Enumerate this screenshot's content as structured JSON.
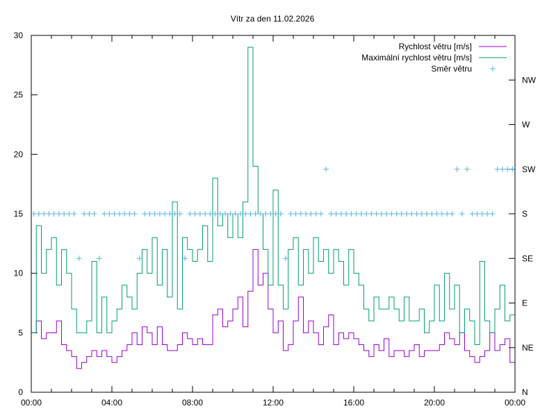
{
  "chart_data": {
    "type": "line",
    "title": "Vítr za den 11.02.2026",
    "xlabel": "",
    "ylabel": "",
    "ylim": [
      0,
      30
    ],
    "y2lim": [
      0,
      360
    ],
    "yticks": [
      0,
      5,
      10,
      15,
      20,
      25,
      30
    ],
    "xticks": [
      "00:00",
      "04:00",
      "08:00",
      "12:00",
      "16:00",
      "20:00",
      "00:00"
    ],
    "y2ticks": [
      {
        "label": "N",
        "value": 0
      },
      {
        "label": "NE",
        "value": 45
      },
      {
        "label": "E",
        "value": 90
      },
      {
        "label": "SE",
        "value": 135
      },
      {
        "label": "S",
        "value": 180
      },
      {
        "label": "SW",
        "value": 225
      },
      {
        "label": "W",
        "value": 270
      },
      {
        "label": "NW",
        "value": 315
      }
    ],
    "legend_position": "top-right",
    "x_hours_step": 0.25,
    "series": [
      {
        "name": "Rychlost větru [m/s]",
        "color": "#9400d3",
        "style": "steps",
        "values": [
          5,
          6,
          4.5,
          5,
          5,
          6,
          4,
          3.5,
          3,
          2,
          2.5,
          3,
          3.5,
          3,
          3.5,
          3,
          2.5,
          3,
          3.5,
          4,
          5,
          4,
          5.5,
          5,
          4,
          5.5,
          4,
          3.5,
          3.5,
          4,
          5,
          4.5,
          4,
          4.5,
          4,
          4,
          6.5,
          7,
          5.5,
          6,
          7,
          8,
          5.5,
          8.5,
          12,
          9,
          10,
          7,
          5,
          6,
          3.5,
          4,
          6,
          8,
          5,
          6,
          5,
          4,
          5.5,
          6.5,
          4,
          5,
          4.5,
          5,
          4.5,
          4,
          3.5,
          3,
          4,
          3.5,
          4.5,
          3,
          3.5,
          3.5,
          3,
          3.5,
          4,
          3,
          3.5,
          3.5,
          3.5,
          4,
          5,
          4.5,
          4,
          5,
          3.5,
          3,
          2.5,
          3,
          3.5,
          5,
          3.5,
          4,
          4.5,
          2.5
        ]
      },
      {
        "name": "Maximální rychlost větru [m/s]",
        "color": "#009e73",
        "style": "steps",
        "values": [
          5,
          14,
          10,
          12,
          13,
          9,
          12,
          10,
          7,
          5,
          5,
          6,
          11,
          5,
          8,
          5,
          6,
          7,
          9,
          8,
          7,
          10,
          12,
          10,
          13,
          9,
          12,
          8,
          16,
          7,
          13,
          12,
          11,
          12,
          14,
          11,
          18,
          14,
          15,
          13,
          15,
          13,
          16,
          29,
          19,
          15,
          12,
          9,
          17,
          9,
          7,
          12,
          13,
          9,
          12,
          10,
          13,
          11,
          12,
          10,
          12,
          11,
          9,
          12,
          10,
          9,
          7,
          6,
          8,
          7,
          7,
          8,
          7,
          6,
          8,
          6,
          6,
          7,
          5,
          6,
          9,
          6,
          10,
          7,
          9,
          5,
          7,
          6,
          4,
          11,
          6,
          5,
          7,
          9,
          6,
          6.5
        ]
      },
      {
        "name": "Směr větru",
        "color": "#56b4e9",
        "style": "points",
        "axis": "y2",
        "values": [
          180,
          180,
          180,
          180,
          180,
          180,
          180,
          180,
          180,
          135,
          180,
          180,
          180,
          135,
          180,
          180,
          180,
          180,
          180,
          180,
          180,
          135,
          180,
          180,
          180,
          180,
          180,
          180,
          180,
          180,
          135,
          180,
          180,
          180,
          180,
          180,
          180,
          180,
          180,
          180,
          180,
          180,
          180,
          180,
          180,
          180,
          180,
          180,
          180,
          180,
          135,
          180,
          180,
          180,
          180,
          180,
          180,
          180,
          225,
          180,
          180,
          180,
          180,
          180,
          180,
          180,
          180,
          180,
          180,
          180,
          180,
          180,
          180,
          180,
          180,
          180,
          180,
          180,
          180,
          180,
          180,
          180,
          180,
          180,
          225,
          180,
          225,
          180,
          180,
          180,
          180,
          180,
          225,
          225,
          225,
          225
        ]
      }
    ]
  }
}
